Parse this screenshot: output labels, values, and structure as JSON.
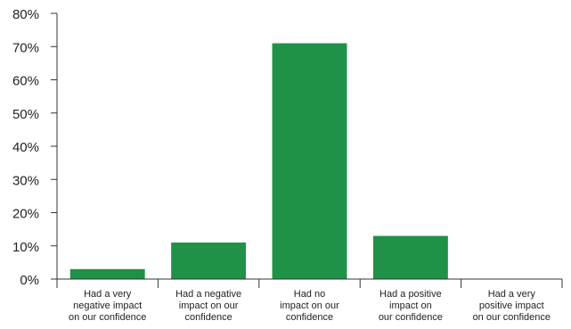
{
  "chart_data": {
    "type": "bar",
    "title": "",
    "xlabel": "",
    "ylabel": "",
    "ylim": [
      0,
      80
    ],
    "y_ticks": [
      "0%",
      "10%",
      "20%",
      "30%",
      "40%",
      "50%",
      "60%",
      "70%",
      "80%"
    ],
    "y_tick_values": [
      0,
      10,
      20,
      30,
      40,
      50,
      60,
      70,
      80
    ],
    "categories": [
      [
        "Had a very",
        "negative impact",
        "on our confidence"
      ],
      [
        "Had a negative",
        "impact on our",
        "confidence"
      ],
      [
        "Had no",
        "impact on our",
        "confidence"
      ],
      [
        "Had a positive",
        "impact on",
        "our confidence"
      ],
      [
        "Had a very",
        "positive impact",
        "on our confidence"
      ]
    ],
    "values": [
      3,
      11,
      71,
      13,
      0
    ],
    "bar_color": "#1f9247",
    "grid": false,
    "legend": "none"
  }
}
